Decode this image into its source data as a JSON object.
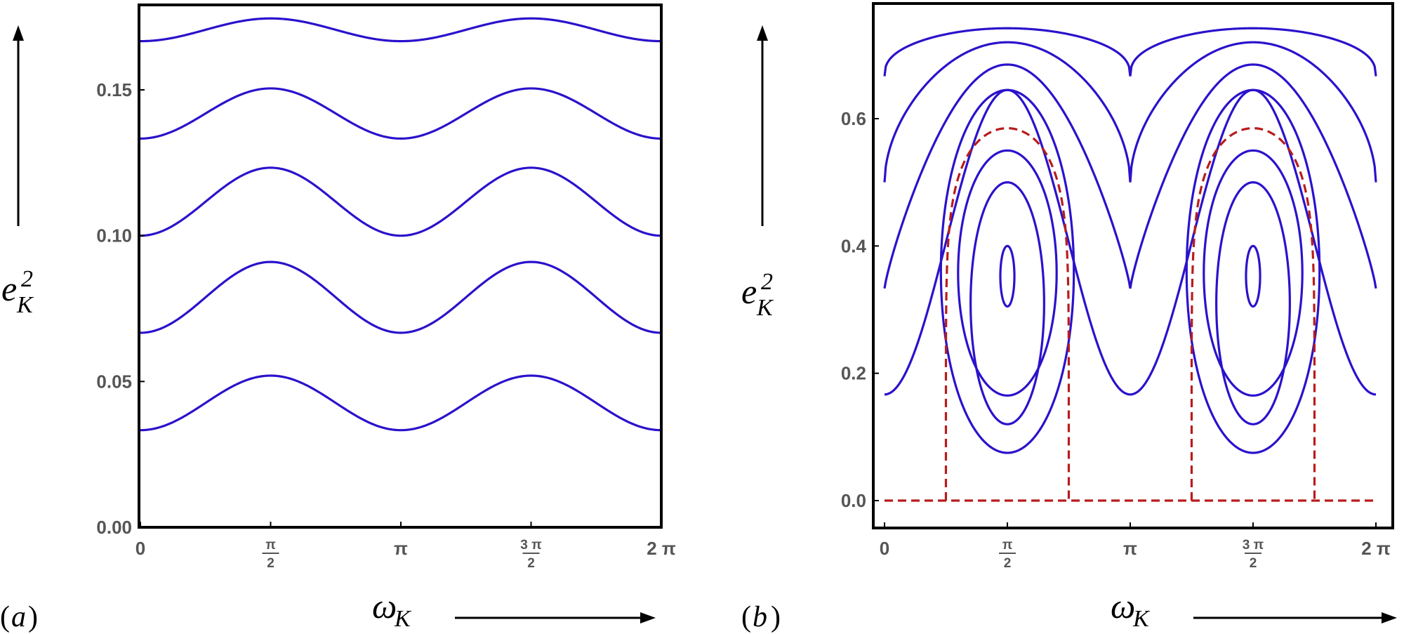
{
  "colors": {
    "curve": "#2a12cc",
    "separatrix": "#b81c1c",
    "frame": "#000000",
    "tick": "#555555"
  },
  "chart_data": [
    {
      "type": "line",
      "panel_label": "a",
      "xlabel": "ω",
      "xlabel_sub": "K",
      "ylabel": "e",
      "ylabel_sup": "2",
      "ylabel_sub": "K",
      "xlim": [
        0,
        6.2832
      ],
      "ylim": [
        0,
        0.19
      ],
      "x_ticks": [
        {
          "value": 0,
          "label": "0"
        },
        {
          "value": 1.5708,
          "num": "π",
          "den": "2"
        },
        {
          "value": 3.1416,
          "label": "π"
        },
        {
          "value": 4.7124,
          "num": "3 π",
          "den": "2"
        },
        {
          "value": 6.2832,
          "label": "2 π"
        }
      ],
      "y_ticks": [
        {
          "value": 0,
          "label": "0.00"
        },
        {
          "value": 0.05,
          "label": "0.05"
        },
        {
          "value": 0.1,
          "label": "0.10"
        },
        {
          "value": 0.15,
          "label": "0.15"
        }
      ],
      "series": [
        {
          "values_at_x0": 0.0333,
          "values_at_peak": 0.052
        },
        {
          "values_at_x0": 0.0667,
          "values_at_peak": 0.091
        },
        {
          "values_at_x0": 0.1,
          "values_at_peak": 0.1233
        },
        {
          "values_at_x0": 0.1333,
          "values_at_peak": 0.1505
        },
        {
          "values_at_x0": 0.1667,
          "values_at_peak": 0.1745
        }
      ]
    },
    {
      "type": "line",
      "panel_label": "b",
      "xlabel": "ω",
      "xlabel_sub": "K",
      "ylabel": "e",
      "ylabel_sup": "2",
      "ylabel_sub": "K",
      "xlim": [
        0,
        6.2832
      ],
      "ylim": [
        0,
        0.75
      ],
      "x_ticks": [
        {
          "value": 0,
          "label": "0"
        },
        {
          "value": 1.5708,
          "num": "π",
          "den": "2"
        },
        {
          "value": 3.1416,
          "label": "π"
        },
        {
          "value": 4.7124,
          "num": "3 π",
          "den": "2"
        },
        {
          "value": 6.2832,
          "label": "2 π"
        }
      ],
      "y_ticks": [
        {
          "value": 0,
          "label": "0.0"
        },
        {
          "value": 0.2,
          "label": "0.2"
        },
        {
          "value": 0.4,
          "label": "0.4"
        },
        {
          "value": 0.6,
          "label": "0.6"
        }
      ],
      "open_curves": [
        {
          "value_at_x0": 0.1667,
          "value_at_peak": 0.645
        },
        {
          "value_at_x0": 0.3333,
          "value_at_peak": 0.685
        },
        {
          "value_at_x0": 0.5,
          "value_at_peak": 0.72
        },
        {
          "value_at_x0": 0.6667,
          "value_at_peak": 0.742
        }
      ],
      "closed_curves": [
        {
          "center_y": 0.35,
          "y_top": 0.4,
          "y_bottom": 0.305,
          "half_width_rad": 0.09
        },
        {
          "center_y": 0.31,
          "y_top": 0.5,
          "y_bottom": 0.12,
          "half_width_rad": 0.47
        },
        {
          "center_y": 0.31,
          "y_top": 0.55,
          "y_bottom": 0.165,
          "half_width_rad": 0.63
        },
        {
          "center_y": 0.31,
          "y_top": 0.645,
          "y_bottom": 0.075,
          "half_width_rad": 0.85
        }
      ],
      "separatrix": {
        "style": "dashed",
        "y_top": 0.585,
        "x_base_left": 0.785,
        "x_base_right": 2.356,
        "baseline_y": 0.0
      }
    }
  ]
}
